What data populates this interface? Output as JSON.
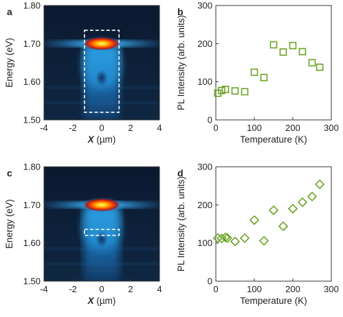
{
  "panel_labels": [
    "a",
    "b",
    "c",
    "d"
  ],
  "colors": {
    "marker": "#6aa321",
    "axis": "#333333",
    "box": "#ffffff"
  },
  "chart_data": [
    {
      "panel": "a",
      "type": "heatmap",
      "xlabel_var": "X",
      "xlabel_unit": " (µm)",
      "ylabel": "Energy (eV)",
      "xlim": [
        -4,
        4
      ],
      "ylim": [
        1.5,
        1.8
      ],
      "xticks": [
        "-4",
        "-2",
        "0",
        "2",
        "4"
      ],
      "yticks": [
        "1.50",
        "1.60",
        "1.70",
        "1.80"
      ],
      "peak": {
        "x": 0,
        "energy": 1.7
      },
      "dashed_box": {
        "x": [
          -1.2,
          1.2
        ],
        "energy": [
          1.52,
          1.735
        ]
      }
    },
    {
      "panel": "b",
      "type": "scatter",
      "marker": "square",
      "xlabel": "Temperature (K)",
      "ylabel": "PL Intensity (arb. units)",
      "xlim": [
        0,
        300
      ],
      "ylim": [
        0,
        300
      ],
      "xticks": [
        "0",
        "100",
        "200",
        "300"
      ],
      "yticks": [
        "0",
        "100",
        "200",
        "300"
      ],
      "x": [
        5,
        15,
        25,
        50,
        75,
        100,
        125,
        150,
        175,
        200,
        225,
        250,
        270
      ],
      "y": [
        70,
        77,
        80,
        76,
        74,
        125,
        111,
        197,
        178,
        195,
        179,
        150,
        138
      ]
    },
    {
      "panel": "c",
      "type": "heatmap",
      "xlabel_var": "X",
      "xlabel_unit": " (µm)",
      "ylabel": "Energy (eV)",
      "xlim": [
        -4,
        4
      ],
      "ylim": [
        1.5,
        1.8
      ],
      "xticks": [
        "-4",
        "-2",
        "0",
        "2",
        "4"
      ],
      "yticks": [
        "1.50",
        "1.60",
        "1.70",
        "1.80"
      ],
      "peak": {
        "x": 0,
        "energy": 1.7
      },
      "dashed_box": {
        "x": [
          -1.2,
          1.2
        ],
        "energy": [
          1.62,
          1.636
        ]
      }
    },
    {
      "panel": "d",
      "type": "scatter",
      "marker": "diamond",
      "xlabel": "Temperature (K)",
      "ylabel": "PL Intensity (arb. units)",
      "xlim": [
        0,
        300
      ],
      "ylim": [
        0,
        300
      ],
      "xticks": [
        "0",
        "100",
        "200",
        "300"
      ],
      "yticks": [
        "0",
        "100",
        "200",
        "300"
      ],
      "x": [
        5,
        15,
        25,
        30,
        50,
        75,
        100,
        125,
        150,
        175,
        200,
        225,
        250,
        270
      ],
      "y": [
        113,
        112,
        115,
        113,
        104,
        113,
        160,
        106,
        186,
        144,
        190,
        207,
        222,
        254
      ]
    }
  ]
}
